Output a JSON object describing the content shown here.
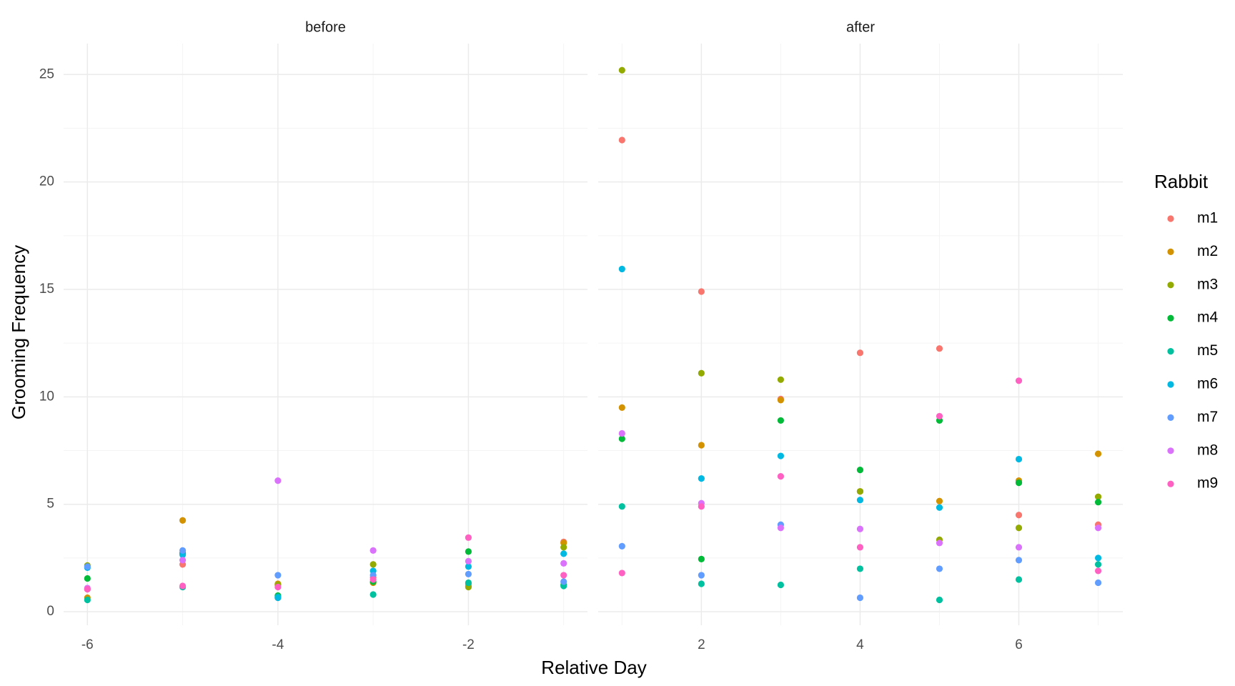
{
  "chart_data": {
    "type": "scatter",
    "x_label": "Relative Day",
    "y_label": "Grooming Frequency",
    "legend_title": "Rabbit",
    "ylim": [
      -0.63,
      26.44
    ],
    "yticks": [
      0,
      5,
      10,
      15,
      20,
      25
    ],
    "y_minor_ticks": [
      2.5,
      7.5,
      12.5,
      17.5,
      22.5
    ],
    "grid": true,
    "legend_position": "right",
    "facets": [
      {
        "title": "before",
        "xlim": [
          -6.25,
          -0.75
        ],
        "xticks": [
          -6,
          -4,
          -2
        ],
        "x_minor_ticks": [
          -5,
          -3,
          -1
        ]
      },
      {
        "title": "after",
        "xlim": [
          0.7,
          7.31
        ],
        "xticks": [
          2,
          4,
          6
        ],
        "x_minor_ticks": [
          1,
          3,
          5,
          7
        ]
      }
    ],
    "series": [
      {
        "name": "m1",
        "color": "#F8766D",
        "x": [
          -6,
          -5,
          -4,
          -3,
          -2,
          -1,
          1,
          2,
          3,
          4,
          5,
          6,
          7
        ],
        "values": [
          1.05,
          2.2,
          0.65,
          1.6,
          1.3,
          3.25,
          21.95,
          14.9,
          9.9,
          12.05,
          12.25,
          4.5,
          4.05
        ]
      },
      {
        "name": "m2",
        "color": "#D39200",
        "x": [
          -6,
          -5,
          -4,
          -3,
          -2,
          -1,
          1,
          2,
          3,
          4,
          5,
          6,
          7
        ],
        "values": [
          0.65,
          4.25,
          1.3,
          1.35,
          1.2,
          3.2,
          9.5,
          7.75,
          9.85,
          5.6,
          5.15,
          6.1,
          7.35
        ]
      },
      {
        "name": "m3",
        "color": "#93AA00",
        "x": [
          -6,
          -5,
          -4,
          -3,
          -2,
          -1,
          1,
          2,
          3,
          4,
          5,
          6,
          7
        ],
        "values": [
          2.15,
          2.75,
          1.25,
          2.2,
          1.15,
          3.0,
          25.2,
          11.1,
          10.8,
          5.6,
          3.35,
          3.9,
          5.35
        ]
      },
      {
        "name": "m4",
        "color": "#00BA38",
        "x": [
          -6,
          -5,
          -4,
          -3,
          -2,
          -1,
          1,
          2,
          3,
          4,
          5,
          6,
          7
        ],
        "values": [
          1.55,
          2.7,
          0.75,
          1.4,
          2.8,
          1.25,
          8.05,
          2.45,
          8.9,
          6.6,
          8.9,
          6.0,
          5.1
        ]
      },
      {
        "name": "m5",
        "color": "#00C19F",
        "x": [
          -6,
          -5,
          -4,
          -3,
          -2,
          -1,
          1,
          2,
          3,
          4,
          5,
          6,
          7
        ],
        "values": [
          0.55,
          1.15,
          0.7,
          0.8,
          1.35,
          1.2,
          4.9,
          1.3,
          1.25,
          2.0,
          0.55,
          1.5,
          2.2
        ]
      },
      {
        "name": "m6",
        "color": "#00B9E3",
        "x": [
          -6,
          -5,
          -4,
          -3,
          -2,
          -1,
          1,
          2,
          3,
          4,
          5,
          6,
          7
        ],
        "values": [
          2.05,
          2.65,
          0.65,
          1.9,
          2.1,
          2.7,
          15.95,
          6.2,
          7.25,
          5.2,
          4.85,
          7.1,
          2.5
        ]
      },
      {
        "name": "m7",
        "color": "#619CFF",
        "x": [
          -6,
          -5,
          -4,
          -3,
          -2,
          -1,
          1,
          2,
          3,
          4,
          5,
          6,
          7
        ],
        "values": [
          2.1,
          2.85,
          1.7,
          1.7,
          1.75,
          1.4,
          3.05,
          1.7,
          4.05,
          0.65,
          2.0,
          2.4,
          1.35
        ]
      },
      {
        "name": "m8",
        "color": "#DB72FB",
        "x": [
          -6,
          -5,
          -4,
          -3,
          -2,
          -1,
          1,
          2,
          3,
          4,
          5,
          6,
          7
        ],
        "values": [
          1.1,
          2.4,
          6.1,
          2.85,
          2.35,
          2.25,
          8.3,
          5.05,
          3.9,
          3.85,
          3.2,
          3.0,
          3.9
        ]
      },
      {
        "name": "m9",
        "color": "#FF61C3",
        "x": [
          -6,
          -5,
          -4,
          -3,
          -2,
          -1,
          1,
          2,
          3,
          4,
          5,
          6,
          7
        ],
        "values": [
          1.05,
          1.2,
          1.15,
          1.5,
          3.45,
          1.7,
          1.8,
          4.9,
          6.3,
          3.0,
          9.1,
          10.75,
          1.9
        ]
      }
    ]
  }
}
